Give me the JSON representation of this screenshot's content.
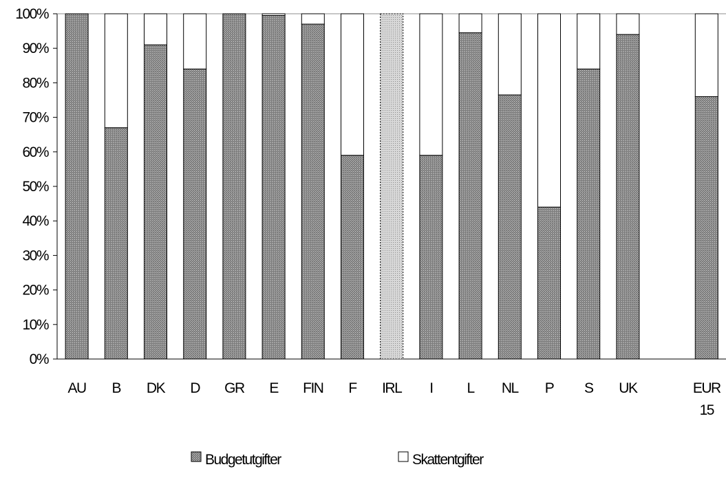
{
  "chart_data": {
    "type": "bar",
    "stacked": "percent",
    "categories": [
      [
        "AU"
      ],
      [
        "B"
      ],
      [
        "DK"
      ],
      [
        "D"
      ],
      [
        "GR"
      ],
      [
        "E"
      ],
      [
        "FIN"
      ],
      [
        "F"
      ],
      [
        "IRL"
      ],
      [
        "I"
      ],
      [
        "L"
      ],
      [
        "NL"
      ],
      [
        "P"
      ],
      [
        "S"
      ],
      [
        "UK"
      ],
      [
        "EUR",
        "15"
      ]
    ],
    "category_gap_after": 14,
    "series": [
      {
        "name": "Budgetutgifter",
        "color": "#8c8c8c",
        "pattern": "dense-dots",
        "values": [
          100,
          67,
          91,
          84,
          100,
          99.5,
          97,
          59,
          100,
          59,
          94.5,
          76.5,
          44,
          84,
          94,
          76
        ]
      },
      {
        "name": "Skattentgifter",
        "color": "#ffffff",
        "pattern": "none",
        "values": [
          0,
          33,
          9,
          16,
          0,
          0.5,
          3,
          41,
          0,
          41,
          5.5,
          23.5,
          56,
          16,
          6,
          24
        ]
      }
    ],
    "ylim": [
      0,
      100
    ],
    "yticks": [
      "0%",
      "10%",
      "20%",
      "30%",
      "40%",
      "50%",
      "60%",
      "70%",
      "80%",
      "90%",
      "100%"
    ],
    "grid": false,
    "legend_position": "bottom-center"
  }
}
